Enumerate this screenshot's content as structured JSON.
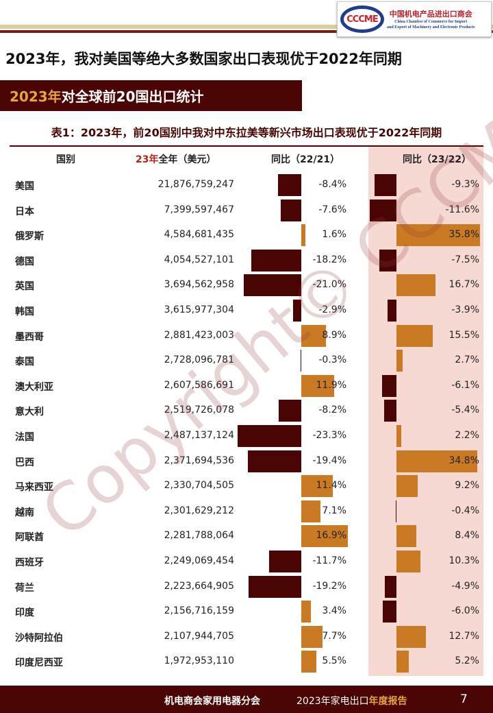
{
  "logo": {
    "mark": "CCCME",
    "cn": "中国机电产品进出口商会",
    "en1": "China Chamber of Commerce for Import",
    "en2": "and Export of Machinery and Electronic Products"
  },
  "headline": "2023年，我对美国等绝大多数国家出口表现优于2022年同期",
  "section": {
    "year": "2023年",
    "rest": "对全球前20国出口统计"
  },
  "table_title": "表1：2023年，前20国别中我对中东拉美等新兴市场出口表现优于2022年同期",
  "headers": {
    "country": "国别",
    "value_year": "23年",
    "value_rest": "全年（美元）",
    "yoy1": "同比（22/21）",
    "yoy2": "同比（23/22）"
  },
  "rows": [
    {
      "name": "美国",
      "value": "21,876,759,247",
      "y1": -8.4,
      "y1_text": "-8.4%",
      "y2": -9.3,
      "y2_text": "-9.3%"
    },
    {
      "name": "日本",
      "value": "7,399,597,467",
      "y1": -7.6,
      "y1_text": "-7.6%",
      "y2": -11.6,
      "y2_text": "-11.6%"
    },
    {
      "name": "俄罗斯",
      "value": "4,584,681,435",
      "y1": 1.6,
      "y1_text": "1.6%",
      "y2": 35.8,
      "y2_text": "35.8%"
    },
    {
      "name": "德国",
      "value": "4,054,527,101",
      "y1": -18.2,
      "y1_text": "-18.2%",
      "y2": -7.5,
      "y2_text": "-7.5%"
    },
    {
      "name": "英国",
      "value": "3,694,562,958",
      "y1": -21.0,
      "y1_text": "-21.0%",
      "y2": 16.7,
      "y2_text": "16.7%"
    },
    {
      "name": "韩国",
      "value": "3,615,977,304",
      "y1": -2.9,
      "y1_text": "-2.9%",
      "y2": -3.9,
      "y2_text": "-3.9%"
    },
    {
      "name": "墨西哥",
      "value": "2,881,423,003",
      "y1": 8.9,
      "y1_text": "8.9%",
      "y2": 15.5,
      "y2_text": "15.5%"
    },
    {
      "name": "泰国",
      "value": "2,728,096,781",
      "y1": -0.3,
      "y1_text": "-0.3%",
      "y2": 2.7,
      "y2_text": "2.7%"
    },
    {
      "name": "澳大利亚",
      "value": "2,607,586,691",
      "y1": 11.9,
      "y1_text": "11.9%",
      "y2": -6.1,
      "y2_text": "-6.1%"
    },
    {
      "name": "意大利",
      "value": "2,519,726,078",
      "y1": -8.2,
      "y1_text": "-8.2%",
      "y2": -5.4,
      "y2_text": "-5.4%"
    },
    {
      "name": "法国",
      "value": "2,487,137,124",
      "y1": -23.3,
      "y1_text": "-23.3%",
      "y2": 2.2,
      "y2_text": "2.2%"
    },
    {
      "name": "巴西",
      "value": "2,371,694,536",
      "y1": -19.4,
      "y1_text": "-19.4%",
      "y2": 34.8,
      "y2_text": "34.8%"
    },
    {
      "name": "马来西亚",
      "value": "2,330,704,505",
      "y1": 11.4,
      "y1_text": "11.4%",
      "y2": 9.2,
      "y2_text": "9.2%"
    },
    {
      "name": "越南",
      "value": "2,301,629,212",
      "y1": 7.1,
      "y1_text": "7.1%",
      "y2": -0.4,
      "y2_text": "-0.4%"
    },
    {
      "name": "阿联酋",
      "value": "2,281,788,064",
      "y1": 16.9,
      "y1_text": "16.9%",
      "y2": 8.4,
      "y2_text": "8.4%"
    },
    {
      "name": "西班牙",
      "value": "2,249,069,454",
      "y1": -11.7,
      "y1_text": "-11.7%",
      "y2": 10.3,
      "y2_text": "10.3%"
    },
    {
      "name": "荷兰",
      "value": "2,223,664,905",
      "y1": -19.2,
      "y1_text": "-19.2%",
      "y2": -4.9,
      "y2_text": "-4.9%"
    },
    {
      "name": "印度",
      "value": "2,156,716,159",
      "y1": 3.4,
      "y1_text": "3.4%",
      "y2": -6.0,
      "y2_text": "-6.0%"
    },
    {
      "name": "沙特阿拉伯",
      "value": "2,107,944,705",
      "y1": 7.7,
      "y1_text": "7.7%",
      "y2": 12.7,
      "y2_text": "12.7%"
    },
    {
      "name": "印度尼西亚",
      "value": "1,972,953,110",
      "y1": 5.5,
      "y1_text": "5.5%",
      "y2": 5.2,
      "y2_text": "5.2%"
    }
  ],
  "watermark": "Copyright© CCCME",
  "colors": {
    "negative": "#4a0404",
    "positive": "#c97a22",
    "highlight": "#f7d9d4"
  },
  "footer": {
    "org": "机电商会家用电器分会",
    "report_plain": "2023年家电出口",
    "report_hl": "年度报告",
    "page": "7"
  }
}
